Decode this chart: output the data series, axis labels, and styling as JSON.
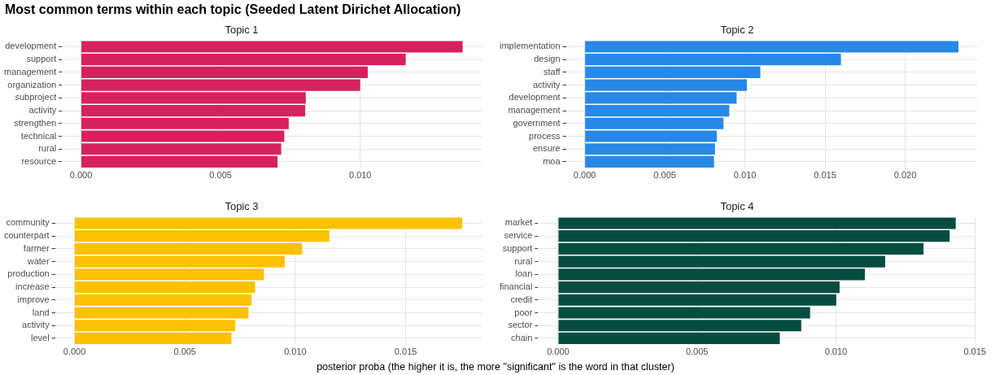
{
  "chart_data": [
    {
      "type": "bar",
      "title": "Most common terms within each topic (Seeded Latent Dirichet Allocation)",
      "subtitle": "Topic 1",
      "orientation": "horizontal",
      "grid": true,
      "color": "#d6215f",
      "categories": [
        "development",
        "support",
        "management",
        "organization",
        "subproject",
        "activity",
        "strengthen",
        "technical",
        "rural",
        "resource"
      ],
      "values": [
        0.01367,
        0.01163,
        0.01027,
        0.01,
        0.00805,
        0.00803,
        0.00744,
        0.00728,
        0.00717,
        0.00704
      ],
      "xlim": [
        -0.00068,
        0.01435
      ],
      "xticks": [
        {
          "value": 0,
          "label": "0.000"
        },
        {
          "value": 0.005,
          "label": "0.005"
        },
        {
          "value": 0.01,
          "label": "0.010"
        }
      ]
    },
    {
      "type": "bar",
      "subtitle": "Topic 2",
      "orientation": "horizontal",
      "grid": true,
      "color": "#2788e6",
      "categories": [
        "implementation",
        "design",
        "staff",
        "activity",
        "development",
        "management",
        "government",
        "process",
        "ensure",
        "moa"
      ],
      "values": [
        0.02332,
        0.01599,
        0.01096,
        0.01012,
        0.00948,
        0.00902,
        0.00866,
        0.00824,
        0.00813,
        0.00807
      ],
      "xlim": [
        -0.00117,
        0.02449
      ],
      "xticks": [
        {
          "value": 0,
          "label": "0.000"
        },
        {
          "value": 0.005,
          "label": "0.005"
        },
        {
          "value": 0.01,
          "label": "0.010"
        },
        {
          "value": 0.015,
          "label": "0.015"
        },
        {
          "value": 0.02,
          "label": "0.020"
        }
      ]
    },
    {
      "type": "bar",
      "subtitle": "Topic 3",
      "xlabel": "posterior proba (the higher it is, the more \"significant\" is the word in that cluster)",
      "orientation": "horizontal",
      "grid": true,
      "color": "#fdc100",
      "categories": [
        "community",
        "counterpart",
        "farmer",
        "water",
        "production",
        "increase",
        "improve",
        "land",
        "activity",
        "level"
      ],
      "values": [
        0.01756,
        0.01154,
        0.01031,
        0.00952,
        0.00858,
        0.00818,
        0.00802,
        0.00788,
        0.00728,
        0.00711
      ],
      "xlim": [
        -0.00088,
        0.01844
      ],
      "xticks": [
        {
          "value": 0,
          "label": "0.000"
        },
        {
          "value": 0.005,
          "label": "0.005"
        },
        {
          "value": 0.01,
          "label": "0.010"
        },
        {
          "value": 0.015,
          "label": "0.015"
        }
      ]
    },
    {
      "type": "bar",
      "subtitle": "Topic 4",
      "orientation": "horizontal",
      "grid": true,
      "color": "#064d40",
      "categories": [
        "market",
        "service",
        "support",
        "rural",
        "loan",
        "financial",
        "credit",
        "poor",
        "sector",
        "chain"
      ],
      "values": [
        0.01431,
        0.01409,
        0.01315,
        0.01177,
        0.01104,
        0.01013,
        0.01001,
        0.00907,
        0.00875,
        0.00798
      ],
      "xlim": [
        -0.00072,
        0.01503
      ],
      "xticks": [
        {
          "value": 0,
          "label": "0.000"
        },
        {
          "value": 0.005,
          "label": "0.005"
        },
        {
          "value": 0.01,
          "label": "0.010"
        },
        {
          "value": 0.015,
          "label": "0.015"
        }
      ]
    }
  ]
}
